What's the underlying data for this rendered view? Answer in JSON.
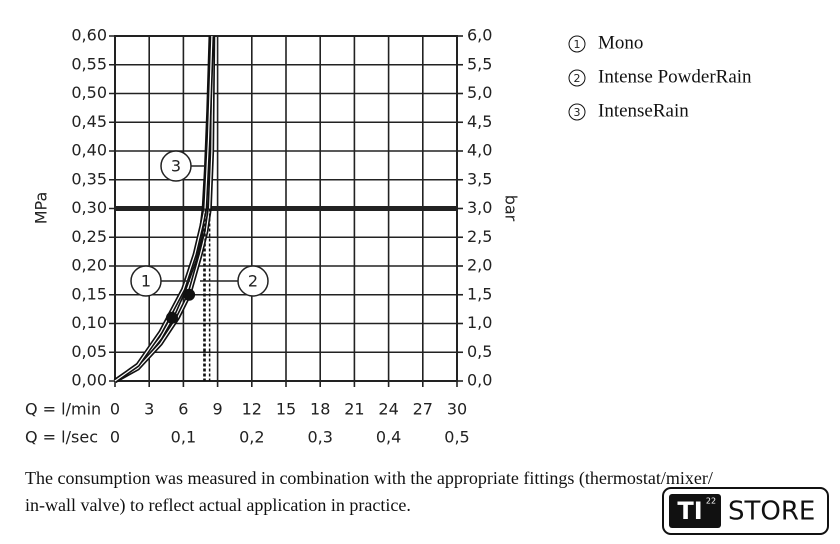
{
  "chart_data": {
    "type": "line",
    "y_label": "MPa",
    "y2_label": "bar",
    "x_label": "Q = l/min",
    "x2_label": "Q = l/sec",
    "xlim": [
      0,
      30
    ],
    "xticks": [
      0,
      3,
      6,
      9,
      12,
      15,
      18,
      21,
      24,
      27,
      30
    ],
    "x2lim": [
      0,
      0.5
    ],
    "x2ticks": [
      0,
      {
        "value": 0.1,
        "label": "0,1"
      },
      {
        "value": 0.2,
        "label": "0,2"
      },
      {
        "value": 0.3,
        "label": "0,3"
      },
      {
        "value": 0.4,
        "label": "0,4"
      },
      {
        "value": 0.5,
        "label": "0,5"
      }
    ],
    "ylim": [
      0,
      0.6
    ],
    "yticks": [
      {
        "value": 0,
        "label": "0,00"
      },
      {
        "value": 0.05,
        "label": "0,05"
      },
      {
        "value": 0.1,
        "label": "0,10"
      },
      {
        "value": 0.15,
        "label": "0,15"
      },
      {
        "value": 0.2,
        "label": "0,20"
      },
      {
        "value": 0.25,
        "label": "0,25"
      },
      {
        "value": 0.3,
        "label": "0,30"
      },
      {
        "value": 0.35,
        "label": "0,35"
      },
      {
        "value": 0.4,
        "label": "0,40"
      },
      {
        "value": 0.45,
        "label": "0,45"
      },
      {
        "value": 0.5,
        "label": "0,50"
      },
      {
        "value": 0.55,
        "label": "0,55"
      },
      {
        "value": 0.6,
        "label": "0,60"
      }
    ],
    "y2lim": [
      0,
      6
    ],
    "y2ticks": [
      {
        "value": 0,
        "label": "0,0"
      },
      {
        "value": 0.5,
        "label": "0,5"
      },
      {
        "value": 1,
        "label": "1,0"
      },
      {
        "value": 1.5,
        "label": "1,5"
      },
      {
        "value": 2,
        "label": "2,0"
      },
      {
        "value": 2.5,
        "label": "2,5"
      },
      {
        "value": 3,
        "label": "3,0"
      },
      {
        "value": 3.5,
        "label": "3,5"
      },
      {
        "value": 4,
        "label": "4,0"
      },
      {
        "value": 4.5,
        "label": "4,5"
      },
      {
        "value": 5,
        "label": "5,0"
      },
      {
        "value": 5.5,
        "label": "5,5"
      },
      {
        "value": 6,
        "label": "6,0"
      }
    ],
    "grid": true,
    "reference_line": 0.3,
    "series": [
      {
        "label": "1",
        "name": "Mono",
        "color": "#111111",
        "x": [
          0,
          2,
          4,
          5,
          6,
          7,
          7.5,
          7.8,
          8.0,
          8.2,
          8.4
        ],
        "values": [
          0,
          0.025,
          0.075,
          0.11,
          0.155,
          0.21,
          0.25,
          0.3,
          0.37,
          0.47,
          0.6
        ]
      },
      {
        "label": "2",
        "name": "Intense PowderRain",
        "color": "#111111",
        "x": [
          0,
          2,
          4,
          5.5,
          6.5,
          7.5,
          8.0,
          8.3,
          8.5,
          8.6
        ],
        "values": [
          0,
          0.022,
          0.065,
          0.11,
          0.15,
          0.22,
          0.26,
          0.3,
          0.4,
          0.6
        ]
      },
      {
        "label": "3",
        "name": "IntenseRain",
        "color": "#111111",
        "x": [
          0,
          2,
          4,
          6,
          7,
          7.6,
          7.9,
          8.2,
          8.5
        ],
        "values": [
          0,
          0.028,
          0.085,
          0.16,
          0.22,
          0.27,
          0.3,
          0.42,
          0.6
        ]
      }
    ],
    "points": [
      {
        "x": 5,
        "y": 0.11
      },
      {
        "x": 6.5,
        "y": 0.15
      }
    ]
  },
  "caption": [
    "The consumption was measured in combination with the appropriate fittings (thermostat/mixer/",
    "in-wall valve) to reflect actual application in practice."
  ],
  "logo": {
    "mark": "TI",
    "superscript": "22",
    "text": "STORE"
  }
}
